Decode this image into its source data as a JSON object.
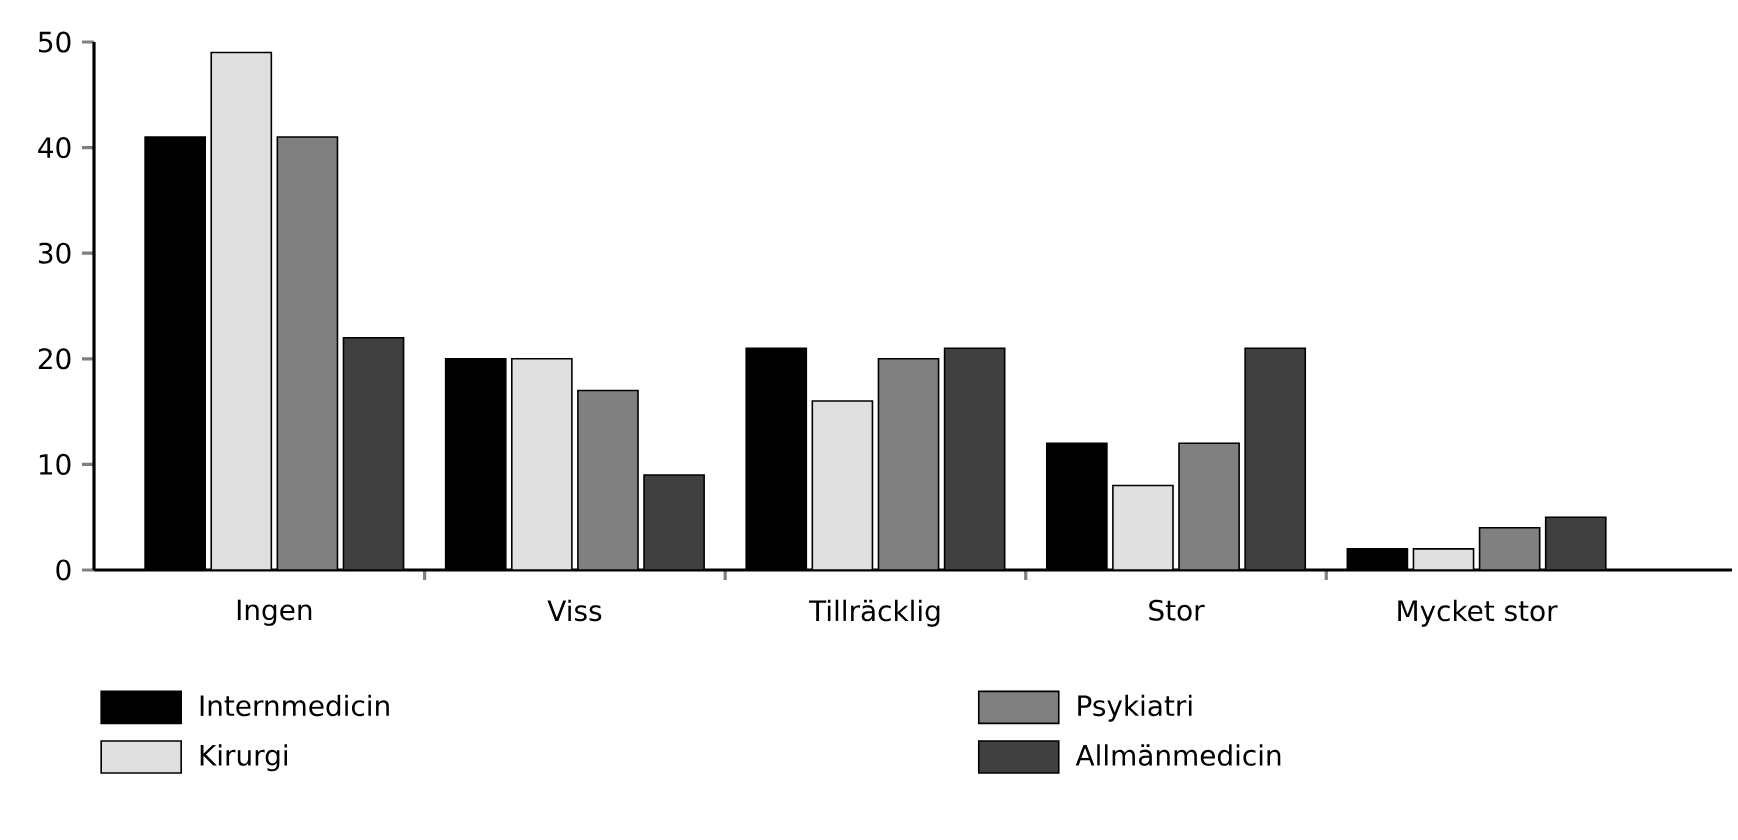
{
  "chart_data": {
    "type": "bar",
    "categories": [
      "Ingen",
      "Viss",
      "Tillräcklig",
      "Stor",
      "Mycket stor"
    ],
    "series": [
      {
        "name": "Internmedicin",
        "color": "#000000",
        "values": [
          41,
          20,
          21,
          12,
          2
        ]
      },
      {
        "name": "Kirurgi",
        "color": "#e0e0e0",
        "values": [
          49,
          20,
          16,
          8,
          2
        ]
      },
      {
        "name": "Psykiatri",
        "color": "#808080",
        "values": [
          41,
          17,
          20,
          12,
          4
        ]
      },
      {
        "name": "Allmänmedicin",
        "color": "#404040",
        "values": [
          22,
          9,
          21,
          21,
          5
        ]
      }
    ],
    "ylim": [
      0,
      50
    ],
    "yticks": [
      0,
      10,
      20,
      30,
      40,
      50
    ],
    "grid": false,
    "legend": "bottom"
  }
}
